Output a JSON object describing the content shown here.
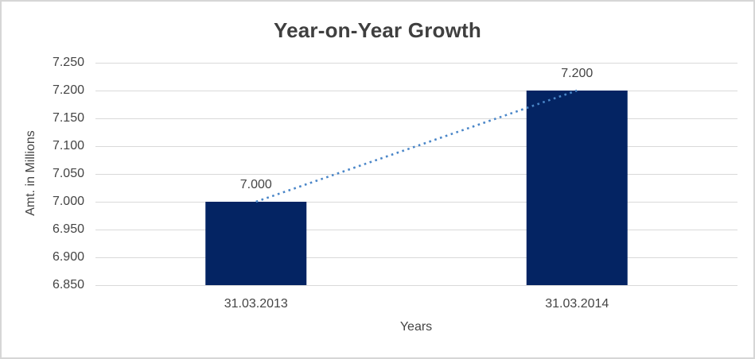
{
  "chart_data": {
    "type": "bar",
    "title": "Year-on-Year Growth",
    "xlabel": "Years",
    "ylabel": "Amt. in Millions",
    "categories": [
      "31.03.2013",
      "31.03.2014"
    ],
    "values": [
      7.0,
      7.2
    ],
    "data_labels": [
      "7.000",
      "7.200"
    ],
    "ylim": [
      6.85,
      7.25
    ],
    "ytick_step": 0.05,
    "ytick_labels": [
      "7.250",
      "7.200",
      "7.150",
      "7.100",
      "7.050",
      "7.000",
      "6.950",
      "6.900",
      "6.850"
    ],
    "grid": "horizontal",
    "legend": "none",
    "trendline": {
      "type": "linear-dotted",
      "from": 7.0,
      "to": 7.2,
      "color": "#4A86C8"
    },
    "colors": {
      "bar": "#042463",
      "gridline": "#D9D9D9",
      "text": "#444444",
      "title": "#3F3F3F",
      "frame_border": "#D6D6D6",
      "background": "#FFFFFF"
    }
  }
}
